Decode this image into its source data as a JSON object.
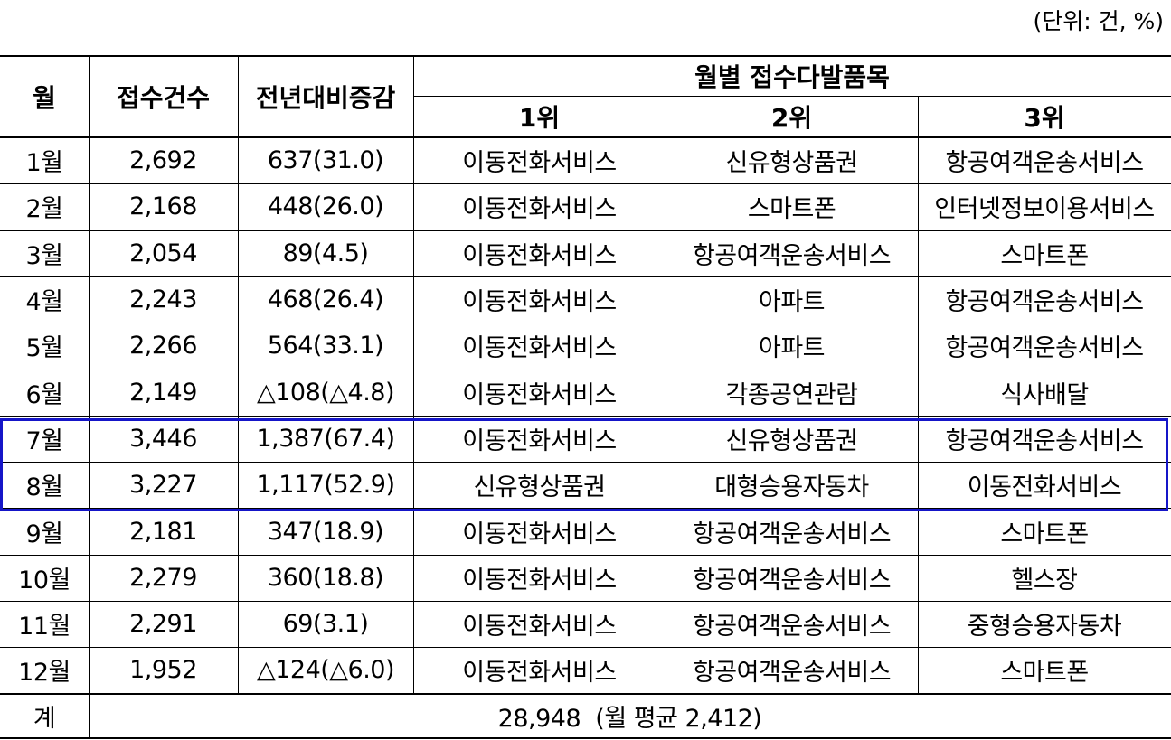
{
  "unit_note": "(단위: 건, %)",
  "headers": {
    "month": "월",
    "count": "접수건수",
    "change": "전년대비증감",
    "group": "월별 접수다발품목",
    "rank1": "1위",
    "rank2": "2위",
    "rank3": "3위"
  },
  "rows": [
    {
      "month": "1월",
      "count": "2,692",
      "change": "637(31.0)",
      "r1": "이동전화서비스",
      "r2": "신유형상품권",
      "r3": "항공여객운송서비스"
    },
    {
      "month": "2월",
      "count": "2,168",
      "change": "448(26.0)",
      "r1": "이동전화서비스",
      "r2": "스마트폰",
      "r3": "인터넷정보이용서비스"
    },
    {
      "month": "3월",
      "count": "2,054",
      "change": "89(4.5)",
      "r1": "이동전화서비스",
      "r2": "항공여객운송서비스",
      "r3": "스마트폰"
    },
    {
      "month": "4월",
      "count": "2,243",
      "change": "468(26.4)",
      "r1": "이동전화서비스",
      "r2": "아파트",
      "r3": "항공여객운송서비스"
    },
    {
      "month": "5월",
      "count": "2,266",
      "change": "564(33.1)",
      "r1": "이동전화서비스",
      "r2": "아파트",
      "r3": "항공여객운송서비스"
    },
    {
      "month": "6월",
      "count": "2,149",
      "change": "△108(△4.8)",
      "r1": "이동전화서비스",
      "r2": "각종공연관람",
      "r3": "식사배달"
    },
    {
      "month": "7월",
      "count": "3,446",
      "change": "1,387(67.4)",
      "r1": "이동전화서비스",
      "r2": "신유형상품권",
      "r3": "항공여객운송서비스"
    },
    {
      "month": "8월",
      "count": "3,227",
      "change": "1,117(52.9)",
      "r1": "신유형상품권",
      "r2": "대형승용자동차",
      "r3": "이동전화서비스"
    },
    {
      "month": "9월",
      "count": "2,181",
      "change": "347(18.9)",
      "r1": "이동전화서비스",
      "r2": "항공여객운송서비스",
      "r3": "스마트폰"
    },
    {
      "month": "10월",
      "count": "2,279",
      "change": "360(18.8)",
      "r1": "이동전화서비스",
      "r2": "항공여객운송서비스",
      "r3": "헬스장"
    },
    {
      "month": "11월",
      "count": "2,291",
      "change": "69(3.1)",
      "r1": "이동전화서비스",
      "r2": "항공여객운송서비스",
      "r3": "중형승용자동차"
    },
    {
      "month": "12월",
      "count": "1,952",
      "change": "△124(△6.0)",
      "r1": "이동전화서비스",
      "r2": "항공여객운송서비스",
      "r3": "스마트폰"
    }
  ],
  "total": {
    "label": "계",
    "value": "28,948  (월 평균 2,412)"
  },
  "highlight": {
    "months": [
      "7월",
      "8월"
    ],
    "color": "#1515c8"
  }
}
